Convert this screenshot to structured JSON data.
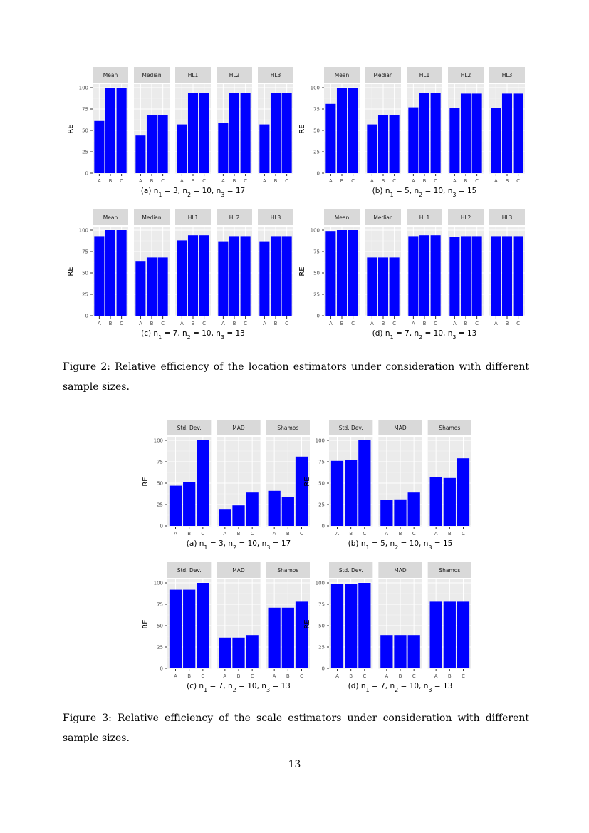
{
  "figure2": {
    "caption": "Figure 2: Relative efficiency of the location estimators under consideration with different sample sizes.",
    "panels": [
      {
        "subcaption": "(a) n₁ = 3, n₂ = 10, n₃ = 17"
      },
      {
        "subcaption": "(b) n₁ = 5, n₂ = 10, n₃ = 15"
      },
      {
        "subcaption": "(c) n₁ = 7, n₂ = 10, n₃ = 13"
      },
      {
        "subcaption": "(d) n₁ = 7, n₂ = 10, n₃ = 13"
      }
    ]
  },
  "figure3": {
    "caption": "Figure 3: Relative efficiency of the scale estimators under consideration with different sample sizes.",
    "panels": [
      {
        "subcaption": "(a) n₁ = 3, n₂ = 10, n₃ = 17"
      },
      {
        "subcaption": "(b) n₁ = 5, n₂ = 10, n₃ = 15"
      },
      {
        "subcaption": "(c) n₁ = 7, n₂ = 10, n₃ = 13"
      },
      {
        "subcaption": "(d) n₁ = 7, n₂ = 10, n₃ = 13"
      }
    ]
  },
  "page_number": "13",
  "chart_data": [
    {
      "type": "bar",
      "panel": "2a",
      "ylabel": "RE",
      "ylim": [
        0,
        100
      ],
      "yticks": [
        0,
        25,
        50,
        75,
        100
      ],
      "categories": [
        "A",
        "B",
        "C"
      ],
      "facets": [
        {
          "name": "Mean",
          "values": [
            61,
            100,
            100
          ]
        },
        {
          "name": "Median",
          "values": [
            44,
            68,
            68
          ]
        },
        {
          "name": "HL1",
          "values": [
            57,
            94,
            94
          ]
        },
        {
          "name": "HL2",
          "values": [
            59,
            94,
            94
          ]
        },
        {
          "name": "HL3",
          "values": [
            57,
            94,
            94
          ]
        }
      ],
      "bar_color": "#0000ff"
    },
    {
      "type": "bar",
      "panel": "2b",
      "ylabel": "RE",
      "ylim": [
        0,
        100
      ],
      "yticks": [
        0,
        25,
        50,
        75,
        100
      ],
      "categories": [
        "A",
        "B",
        "C"
      ],
      "facets": [
        {
          "name": "Mean",
          "values": [
            81,
            100,
            100
          ]
        },
        {
          "name": "Median",
          "values": [
            57,
            68,
            68
          ]
        },
        {
          "name": "HL1",
          "values": [
            77,
            94,
            94
          ]
        },
        {
          "name": "HL2",
          "values": [
            76,
            93,
            93
          ]
        },
        {
          "name": "HL3",
          "values": [
            76,
            93,
            93
          ]
        }
      ],
      "bar_color": "#0000ff"
    },
    {
      "type": "bar",
      "panel": "2c",
      "ylabel": "RE",
      "ylim": [
        0,
        100
      ],
      "yticks": [
        0,
        25,
        50,
        75,
        100
      ],
      "categories": [
        "A",
        "B",
        "C"
      ],
      "facets": [
        {
          "name": "Mean",
          "values": [
            93,
            100,
            100
          ]
        },
        {
          "name": "Median",
          "values": [
            64,
            68,
            68
          ]
        },
        {
          "name": "HL1",
          "values": [
            88,
            94,
            94
          ]
        },
        {
          "name": "HL2",
          "values": [
            87,
            93,
            93
          ]
        },
        {
          "name": "HL3",
          "values": [
            87,
            93,
            93
          ]
        }
      ],
      "bar_color": "#0000ff"
    },
    {
      "type": "bar",
      "panel": "2d",
      "ylabel": "RE",
      "ylim": [
        0,
        100
      ],
      "yticks": [
        0,
        25,
        50,
        75,
        100
      ],
      "categories": [
        "A",
        "B",
        "C"
      ],
      "facets": [
        {
          "name": "Mean",
          "values": [
            99,
            100,
            100
          ]
        },
        {
          "name": "Median",
          "values": [
            68,
            68,
            68
          ]
        },
        {
          "name": "HL1",
          "values": [
            93,
            94,
            94
          ]
        },
        {
          "name": "HL2",
          "values": [
            92,
            93,
            93
          ]
        },
        {
          "name": "HL3",
          "values": [
            93,
            93,
            93
          ]
        }
      ],
      "bar_color": "#0000ff"
    },
    {
      "type": "bar",
      "panel": "3a",
      "ylabel": "RE",
      "ylim": [
        0,
        100
      ],
      "yticks": [
        0,
        25,
        50,
        75,
        100
      ],
      "categories": [
        "A",
        "B",
        "C"
      ],
      "facets": [
        {
          "name": "Std. Dev.",
          "values": [
            47,
            51,
            100
          ]
        },
        {
          "name": "MAD",
          "values": [
            19,
            24,
            39
          ]
        },
        {
          "name": "Shamos",
          "values": [
            41,
            34,
            81
          ]
        }
      ],
      "bar_color": "#0000ff"
    },
    {
      "type": "bar",
      "panel": "3b",
      "ylabel": "RE",
      "ylim": [
        0,
        100
      ],
      "yticks": [
        0,
        25,
        50,
        75,
        100
      ],
      "categories": [
        "A",
        "B",
        "C"
      ],
      "facets": [
        {
          "name": "Std. Dev.",
          "values": [
            76,
            77,
            100
          ]
        },
        {
          "name": "MAD",
          "values": [
            30,
            31,
            39
          ]
        },
        {
          "name": "Shamos",
          "values": [
            57,
            56,
            79
          ]
        }
      ],
      "bar_color": "#0000ff"
    },
    {
      "type": "bar",
      "panel": "3c",
      "ylabel": "RE",
      "ylim": [
        0,
        100
      ],
      "yticks": [
        0,
        25,
        50,
        75,
        100
      ],
      "categories": [
        "A",
        "B",
        "C"
      ],
      "facets": [
        {
          "name": "Std. Dev.",
          "values": [
            92,
            92,
            100
          ]
        },
        {
          "name": "MAD",
          "values": [
            36,
            36,
            39
          ]
        },
        {
          "name": "Shamos",
          "values": [
            71,
            71,
            78
          ]
        }
      ],
      "bar_color": "#0000ff"
    },
    {
      "type": "bar",
      "panel": "3d",
      "ylabel": "RE",
      "ylim": [
        0,
        100
      ],
      "yticks": [
        0,
        25,
        50,
        75,
        100
      ],
      "categories": [
        "A",
        "B",
        "C"
      ],
      "facets": [
        {
          "name": "Std. Dev.",
          "values": [
            99,
            99,
            100
          ]
        },
        {
          "name": "MAD",
          "values": [
            39,
            39,
            39
          ]
        },
        {
          "name": "Shamos",
          "values": [
            78,
            78,
            78
          ]
        }
      ],
      "bar_color": "#0000ff"
    }
  ]
}
